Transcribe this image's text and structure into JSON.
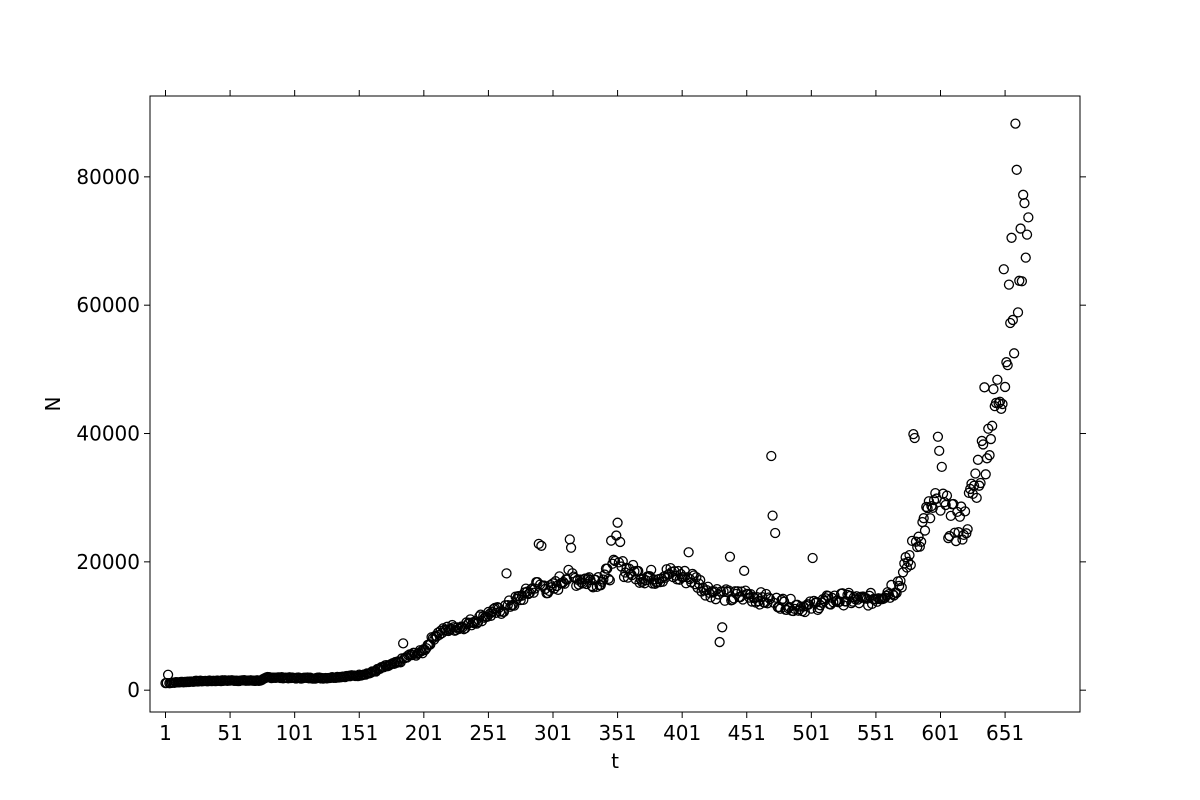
{
  "chart_data": {
    "type": "scatter",
    "title": "",
    "xlabel": "t",
    "ylabel": "N",
    "xlim": [
      -11,
      709
    ],
    "ylim": [
      -3400,
      92600
    ],
    "xticks": [
      1,
      51,
      101,
      151,
      201,
      251,
      301,
      351,
      401,
      451,
      501,
      551,
      601,
      651
    ],
    "xtick_labels": [
      "1",
      "51",
      "101",
      "151",
      "201",
      "251",
      "301",
      "351",
      "401",
      "451",
      "501",
      "551",
      "601",
      "651"
    ],
    "yticks": [
      0,
      20000,
      40000,
      60000,
      80000
    ],
    "ytick_labels": [
      "0",
      "20000",
      "40000",
      "60000",
      "80000"
    ],
    "grid": false,
    "legend": "none",
    "marker": "open-circle",
    "marker_color": "#000000",
    "anchors": {
      "x": [
        1,
        25,
        50,
        75,
        80,
        100,
        125,
        150,
        160,
        170,
        180,
        190,
        200,
        210,
        220,
        230,
        240,
        250,
        260,
        270,
        280,
        290,
        300,
        310,
        320,
        330,
        340,
        350,
        360,
        370,
        380,
        390,
        400,
        410,
        420,
        430,
        440,
        450,
        460,
        470,
        480,
        490,
        500,
        510,
        520,
        530,
        540,
        550,
        560,
        570,
        580,
        590,
        600,
        610,
        620,
        630,
        640,
        650,
        660,
        669
      ],
      "y": [
        1100,
        1400,
        1500,
        1500,
        2000,
        1900,
        1900,
        2300,
        2700,
        3600,
        4200,
        5400,
        6000,
        8600,
        9600,
        9900,
        10800,
        11800,
        12400,
        13600,
        15000,
        16500,
        15500,
        17700,
        17300,
        17200,
        17400,
        19400,
        18600,
        17800,
        17600,
        18100,
        17800,
        17400,
        15700,
        15000,
        14500,
        14900,
        14400,
        13900,
        13500,
        13100,
        13000,
        13700,
        14200,
        14200,
        13900,
        14300,
        15300,
        17000,
        22000,
        27000,
        29000,
        26000,
        26000,
        34000,
        41000,
        50000,
        62000,
        71000
      ]
    },
    "outliers": [
      {
        "x": 3,
        "y": 2400
      },
      {
        "x": 185,
        "y": 7300
      },
      {
        "x": 265,
        "y": 18200
      },
      {
        "x": 290,
        "y": 22800
      },
      {
        "x": 292,
        "y": 22500
      },
      {
        "x": 314,
        "y": 23500
      },
      {
        "x": 315,
        "y": 22200
      },
      {
        "x": 346,
        "y": 23300
      },
      {
        "x": 350,
        "y": 24100
      },
      {
        "x": 351,
        "y": 26100
      },
      {
        "x": 353,
        "y": 23100
      },
      {
        "x": 406,
        "y": 21500
      },
      {
        "x": 430,
        "y": 7500
      },
      {
        "x": 432,
        "y": 9800
      },
      {
        "x": 438,
        "y": 20800
      },
      {
        "x": 449,
        "y": 18600
      },
      {
        "x": 470,
        "y": 36500
      },
      {
        "x": 471,
        "y": 27200
      },
      {
        "x": 473,
        "y": 24500
      },
      {
        "x": 502,
        "y": 20600
      },
      {
        "x": 580,
        "y": 39900
      },
      {
        "x": 581,
        "y": 39300
      },
      {
        "x": 599,
        "y": 39500
      },
      {
        "x": 600,
        "y": 37300
      },
      {
        "x": 602,
        "y": 34800
      },
      {
        "x": 635,
        "y": 47200
      },
      {
        "x": 650,
        "y": 65600
      },
      {
        "x": 654,
        "y": 63200
      },
      {
        "x": 656,
        "y": 70500
      },
      {
        "x": 657,
        "y": 57700
      },
      {
        "x": 659,
        "y": 88300
      },
      {
        "x": 660,
        "y": 81100
      },
      {
        "x": 662,
        "y": 63800
      },
      {
        "x": 665,
        "y": 77200
      },
      {
        "x": 666,
        "y": 75900
      },
      {
        "x": 668,
        "y": 71000
      }
    ]
  }
}
